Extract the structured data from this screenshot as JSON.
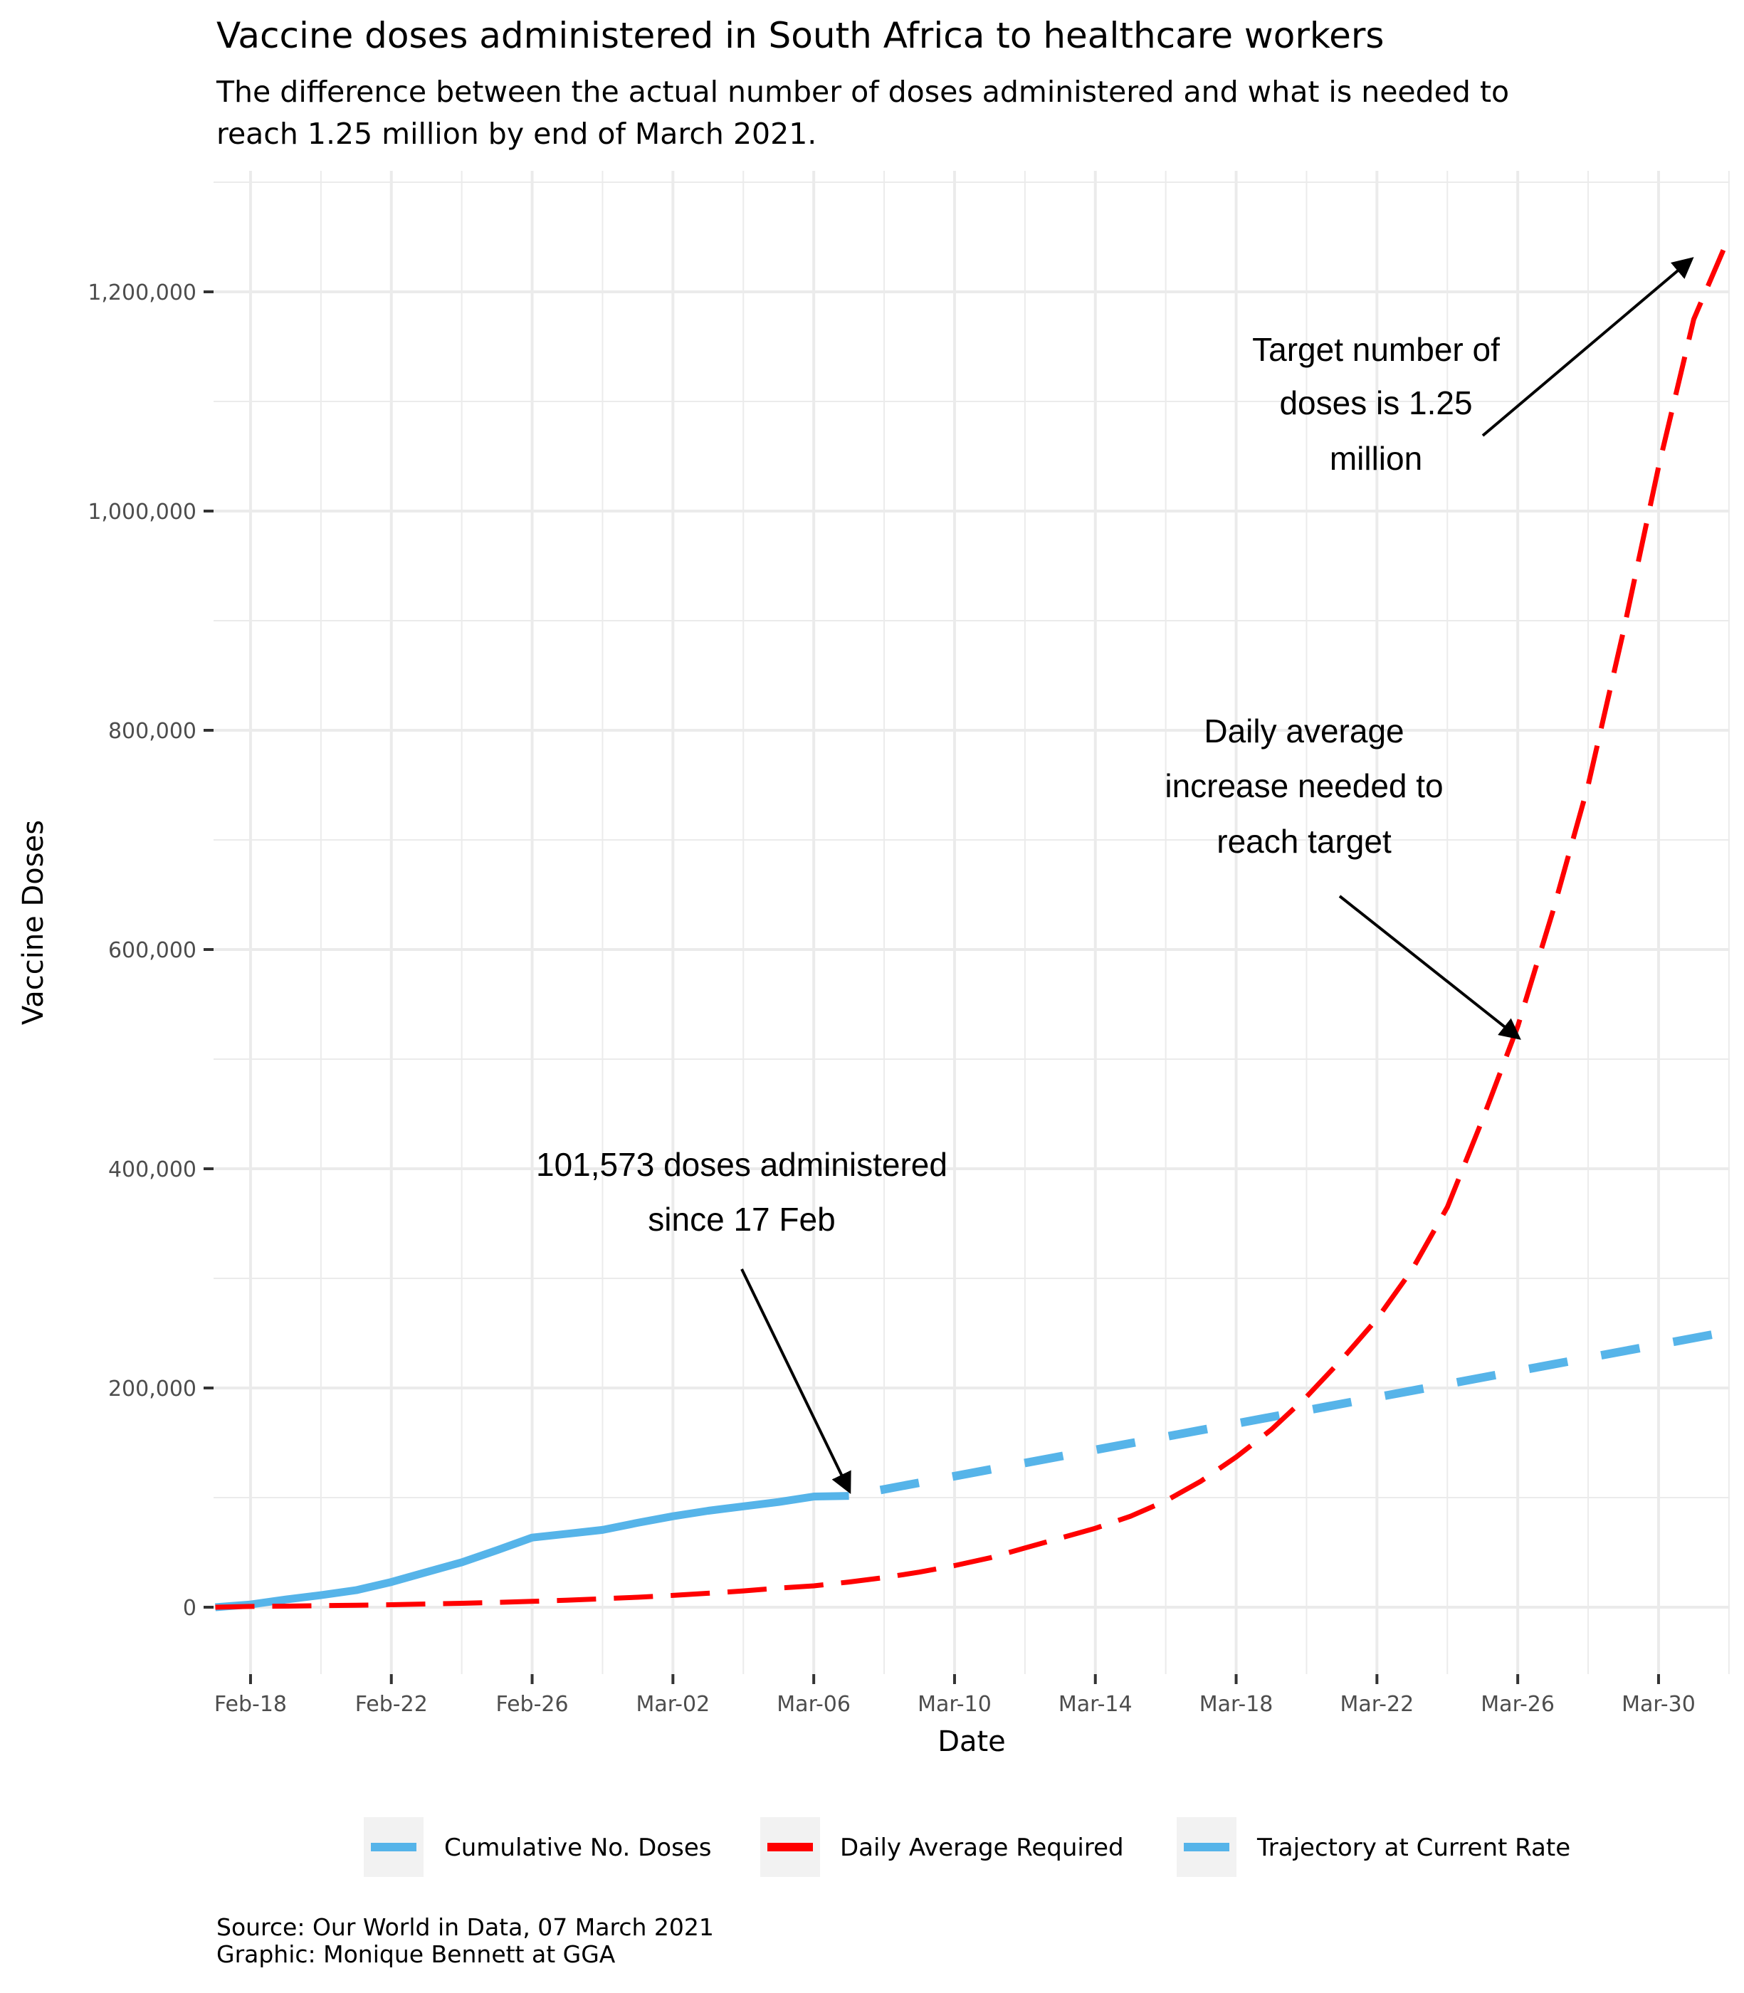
{
  "chart_data": {
    "type": "line",
    "title": "Vaccine doses administered in South Africa to healthcare workers",
    "subtitle": [
      "The difference between the actual number of doses administered and what is needed to",
      "reach 1.25 million by end of March 2021."
    ],
    "xlabel": "Date",
    "ylabel": "Vaccine Doses",
    "x_range": [
      "2021-02-17",
      "2021-04-01"
    ],
    "ylim": [
      -61000,
      1310000
    ],
    "grid": true,
    "x_ticks": [
      {
        "date": "2021-02-18",
        "label": "Feb-18"
      },
      {
        "date": "2021-02-22",
        "label": "Feb-22"
      },
      {
        "date": "2021-02-26",
        "label": "Feb-26"
      },
      {
        "date": "2021-03-02",
        "label": "Mar-02"
      },
      {
        "date": "2021-03-06",
        "label": "Mar-06"
      },
      {
        "date": "2021-03-10",
        "label": "Mar-10"
      },
      {
        "date": "2021-03-14",
        "label": "Mar-14"
      },
      {
        "date": "2021-03-18",
        "label": "Mar-18"
      },
      {
        "date": "2021-03-22",
        "label": "Mar-22"
      },
      {
        "date": "2021-03-26",
        "label": "Mar-26"
      },
      {
        "date": "2021-03-30",
        "label": "Mar-30"
      }
    ],
    "y_ticks": [
      {
        "value": 0,
        "label": "0"
      },
      {
        "value": 200000,
        "label": "200,000"
      },
      {
        "value": 400000,
        "label": "400,000"
      },
      {
        "value": 600000,
        "label": "600,000"
      },
      {
        "value": 800000,
        "label": "800,000"
      },
      {
        "value": 1000000,
        "label": "1,000,000"
      },
      {
        "value": 1200000,
        "label": "1,200,000"
      }
    ],
    "series": [
      {
        "name": "Cumulative No. Doses",
        "color": "#56b4e9",
        "style": "solid",
        "points": [
          [
            "2021-02-17",
            0
          ],
          [
            "2021-02-18",
            2500
          ],
          [
            "2021-02-19",
            7000
          ],
          [
            "2021-02-20",
            11000
          ],
          [
            "2021-02-21",
            15500
          ],
          [
            "2021-02-22",
            23000
          ],
          [
            "2021-02-23",
            32000
          ],
          [
            "2021-02-24",
            41000
          ],
          [
            "2021-02-25",
            52000
          ],
          [
            "2021-02-26",
            63500
          ],
          [
            "2021-02-27",
            67000
          ],
          [
            "2021-02-28",
            70500
          ],
          [
            "2021-03-01",
            77000
          ],
          [
            "2021-03-02",
            83000
          ],
          [
            "2021-03-03",
            88000
          ],
          [
            "2021-03-04",
            92000
          ],
          [
            "2021-03-05",
            96000
          ],
          [
            "2021-03-06",
            101000
          ],
          [
            "2021-03-07",
            101573
          ]
        ]
      },
      {
        "name": "Daily Average Required",
        "color": "#ff0000",
        "style": "dashed",
        "points": [
          [
            "2021-02-17",
            0
          ],
          [
            "2021-02-18",
            700
          ],
          [
            "2021-02-19",
            1000
          ],
          [
            "2021-02-20",
            1400
          ],
          [
            "2021-02-21",
            1800
          ],
          [
            "2021-02-22",
            2300
          ],
          [
            "2021-02-23",
            2900
          ],
          [
            "2021-02-24",
            3600
          ],
          [
            "2021-02-25",
            4400
          ],
          [
            "2021-02-26",
            5300
          ],
          [
            "2021-02-27",
            6400
          ],
          [
            "2021-02-28",
            7700
          ],
          [
            "2021-03-01",
            9100
          ],
          [
            "2021-03-02",
            10800
          ],
          [
            "2021-03-03",
            12700
          ],
          [
            "2021-03-04",
            14900
          ],
          [
            "2021-03-05",
            17400
          ],
          [
            "2021-03-06",
            19500
          ],
          [
            "2021-03-07",
            23000
          ],
          [
            "2021-03-08",
            27000
          ],
          [
            "2021-03-09",
            32000
          ],
          [
            "2021-03-10",
            38000
          ],
          [
            "2021-03-11",
            45000
          ],
          [
            "2021-03-12",
            54000
          ],
          [
            "2021-03-13",
            63000
          ],
          [
            "2021-03-14",
            72000
          ],
          [
            "2021-03-15",
            83000
          ],
          [
            "2021-03-16",
            97000
          ],
          [
            "2021-03-17",
            115000
          ],
          [
            "2021-03-18",
            137000
          ],
          [
            "2021-03-19",
            162000
          ],
          [
            "2021-03-20",
            192000
          ],
          [
            "2021-03-21",
            226000
          ],
          [
            "2021-03-22",
            263000
          ],
          [
            "2021-03-23",
            308000
          ],
          [
            "2021-03-24",
            365000
          ],
          [
            "2021-03-25",
            445000
          ],
          [
            "2021-03-26",
            530000
          ],
          [
            "2021-03-27",
            635000
          ],
          [
            "2021-03-28",
            750000
          ],
          [
            "2021-03-29",
            890000
          ],
          [
            "2021-03-30",
            1040000
          ],
          [
            "2021-03-31",
            1175000
          ],
          [
            "2021-04-01",
            1250000
          ]
        ]
      },
      {
        "name": "Trajectory at Current Rate",
        "color": "#56b4e9",
        "style": "dashed",
        "points": [
          [
            "2021-03-07",
            101573
          ],
          [
            "2021-03-12",
            131573
          ],
          [
            "2021-03-17",
            161573
          ],
          [
            "2021-03-22",
            191573
          ],
          [
            "2021-03-27",
            221573
          ],
          [
            "2021-04-01",
            251573
          ]
        ]
      }
    ],
    "annotations": [
      {
        "lines": [
          "101,573 doses administered",
          "since 17 Feb"
        ],
        "arrow_to": [
          "2021-03-07",
          101573
        ]
      },
      {
        "lines": [
          "Daily average",
          "increase needed to",
          "reach target"
        ],
        "arrow_to": [
          "2021-03-26",
          520000
        ]
      },
      {
        "lines": [
          "Target number of",
          "doses is 1.25",
          "million"
        ],
        "arrow_to": [
          "2021-03-31",
          1230000
        ]
      }
    ],
    "legend": {
      "position": "bottom",
      "items": [
        {
          "label": "Cumulative No. Doses",
          "color": "#56b4e9",
          "style": "solid"
        },
        {
          "label": "Daily Average Required",
          "color": "#ff0000",
          "style": "dashed"
        },
        {
          "label": "Trajectory at Current Rate",
          "color": "#56b4e9",
          "style": "dashed"
        }
      ]
    },
    "caption": [
      "Source: Our World in Data, 07 March 2021",
      "Graphic: Monique Bennett at GGA"
    ]
  }
}
